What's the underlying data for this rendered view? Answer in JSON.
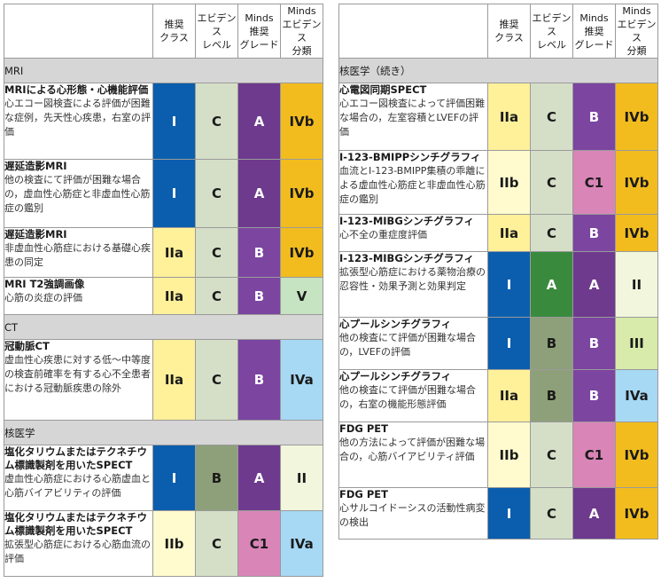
{
  "headers": {
    "class": "推奨\nクラス",
    "evidence": "エビデンス\nレベル",
    "grade": "Minds\n推奨\nグレード",
    "category": "Minds\nエビデンス\n分類"
  },
  "left": {
    "sections": [
      {
        "label": "MRI",
        "rows": [
          {
            "title": "MRIによる心形態・心機能評価",
            "desc": "心エコー図検査による評価が困難な症例，先天性心疾患，右室の評価",
            "cls": "I",
            "ev": "C",
            "grade": "A",
            "cat": "IVb"
          },
          {
            "title": "遅延造影MRI",
            "desc": "他の検査にて評価が困難な場合の，虚血性心筋症と非虚血性心筋症の鑑別",
            "cls": "I",
            "ev": "C",
            "grade": "A",
            "cat": "IVb"
          },
          {
            "title": "遅延造影MRI",
            "desc": "非虚血性心筋症における基礎心疾患の同定",
            "cls": "IIa",
            "ev": "C",
            "grade": "B",
            "cat": "IVb"
          },
          {
            "title": "MRI T2強調画像",
            "desc": "心筋の炎症の評価",
            "cls": "IIa",
            "ev": "C",
            "grade": "B",
            "cat": "V"
          }
        ]
      },
      {
        "label": "CT",
        "rows": [
          {
            "title": "冠動脈CT",
            "desc": "虚血性心疾患に対する低〜中等度の検査前確率を有する心不全患者における冠動脈疾患の除外",
            "cls": "IIa",
            "ev": "C",
            "grade": "B",
            "cat": "IVa"
          }
        ]
      },
      {
        "label": "核医学",
        "rows": [
          {
            "title": "塩化タリウムまたはテクネチウム標識製剤を用いたSPECT",
            "desc": "虚血性心筋症における心筋虚血と心筋バイアビリティの評価",
            "cls": "I",
            "ev": "B",
            "grade": "A",
            "cat": "II"
          },
          {
            "title": "塩化タリウムまたはテクネチウム標識製剤を用いたSPECT",
            "desc": "拡張型心筋症における心筋血流の評価",
            "cls": "IIb",
            "ev": "C",
            "grade": "C1",
            "cat": "IVa"
          }
        ]
      }
    ]
  },
  "right": {
    "sections": [
      {
        "label": "核医学（続き）",
        "rows": [
          {
            "title": "心電図同期SPECT",
            "desc": "心エコー図検査によって評価困難な場合の，左室容積とLVEFの評価",
            "cls": "IIa",
            "ev": "C",
            "grade": "B",
            "cat": "IVb"
          },
          {
            "title": "I-123-BMIPPシンチグラフィ",
            "desc": "血流とI-123-BMIPP集積の乖離による虚血性心筋症と非虚血性心筋症の鑑別",
            "cls": "IIb",
            "ev": "C",
            "grade": "C1",
            "cat": "IVb"
          },
          {
            "title": "I-123-MIBGシンチグラフィ",
            "desc": "心不全の重症度評価",
            "cls": "IIa",
            "ev": "C",
            "grade": "B",
            "cat": "IVb"
          },
          {
            "title": "I-123-MIBGシンチグラフィ",
            "desc": "拡張型心筋症における薬物治療の忍容性・効果予測と効果判定",
            "cls": "I",
            "ev": "A",
            "grade": "A",
            "cat": "II"
          },
          {
            "title": "心プールシンチグラフィ",
            "desc": "他の検査にて評価が困難な場合の，LVEFの評価",
            "cls": "I",
            "ev": "B",
            "grade": "B",
            "cat": "III"
          },
          {
            "title": "心プールシンチグラフィ",
            "desc": "他の検査にて評価が困難な場合の，右室の機能形態評価",
            "cls": "IIa",
            "ev": "B",
            "grade": "B",
            "cat": "IVa"
          },
          {
            "title": "FDG PET",
            "desc": "他の方法によって評価が困難な場合の，心筋バイアビリティ評価",
            "cls": "IIb",
            "ev": "C",
            "grade": "C1",
            "cat": "IVb"
          },
          {
            "title": "FDG PET",
            "desc": "心サルコイドーシスの活動性病変の検出",
            "cls": "I",
            "ev": "C",
            "grade": "A",
            "cat": "IVb"
          }
        ]
      }
    ]
  }
}
